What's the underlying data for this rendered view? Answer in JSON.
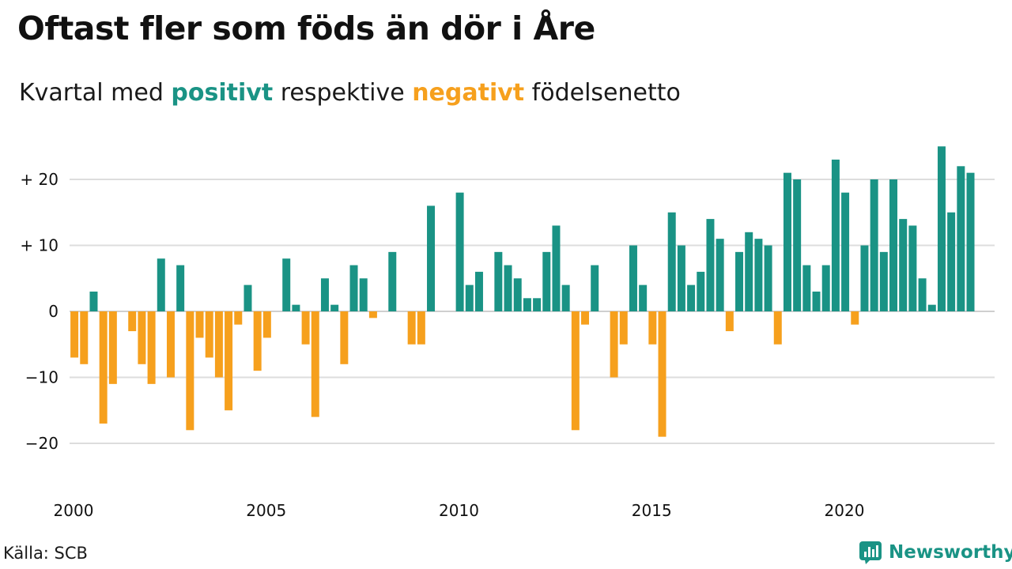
{
  "header": {
    "title": "Oftast fler som föds än dör i Åre",
    "subtitle_prefix": "Kvartal med ",
    "subtitle_positive": "positivt",
    "subtitle_middle": " respektive ",
    "subtitle_negative": "negativt",
    "subtitle_suffix": " födelsenetto"
  },
  "footer": {
    "source": "Källa: SCB",
    "brand": "Newsworthy",
    "brand_icon": "bar-chart-logo-icon"
  },
  "colors": {
    "positive": "#1a9385",
    "negative": "#f6a01d",
    "grid": "#dddddd",
    "text": "#111111"
  },
  "chart_data": {
    "type": "bar",
    "title": "Oftast fler som föds än dör i Åre",
    "subtitle": "Kvartal med positivt respektive negativt födelsenetto",
    "xlabel": "",
    "ylabel": "",
    "ylim": [
      -25,
      27
    ],
    "y_ticks": [
      -20,
      -10,
      0,
      10,
      20
    ],
    "y_tick_labels": [
      "−20",
      "−10",
      "0",
      "+ 10",
      "+ 20"
    ],
    "x_tick_years": [
      2000,
      2005,
      2010,
      2015,
      2020
    ],
    "x_tick_labels": [
      "2000",
      "2005",
      "2010",
      "2015",
      "2020"
    ],
    "start_year": 2000,
    "periods_per_year": 4,
    "grid": true,
    "legend": "none",
    "categories": [
      "2000K1",
      "2000K2",
      "2000K3",
      "2000K4",
      "2001K1",
      "2001K2",
      "2001K3",
      "2001K4",
      "2002K1",
      "2002K2",
      "2002K3",
      "2002K4",
      "2003K1",
      "2003K2",
      "2003K3",
      "2003K4",
      "2004K1",
      "2004K2",
      "2004K3",
      "2004K4",
      "2005K1",
      "2005K2",
      "2005K3",
      "2005K4",
      "2006K1",
      "2006K2",
      "2006K3",
      "2006K4",
      "2007K1",
      "2007K2",
      "2007K3",
      "2007K4",
      "2008K1",
      "2008K2",
      "2008K3",
      "2008K4",
      "2009K1",
      "2009K2",
      "2009K3",
      "2009K4",
      "2010K1",
      "2010K2",
      "2010K3",
      "2010K4",
      "2011K1",
      "2011K2",
      "2011K3",
      "2011K4",
      "2012K1",
      "2012K2",
      "2012K3",
      "2012K4",
      "2013K1",
      "2013K2",
      "2013K3",
      "2013K4",
      "2014K1",
      "2014K2",
      "2014K3",
      "2014K4",
      "2015K1",
      "2015K2",
      "2015K3",
      "2015K4",
      "2016K1",
      "2016K2",
      "2016K3",
      "2016K4",
      "2017K1",
      "2017K2",
      "2017K3",
      "2017K4",
      "2018K1",
      "2018K2",
      "2018K3",
      "2018K4",
      "2019K1",
      "2019K2",
      "2019K3",
      "2019K4",
      "2020K1",
      "2020K2",
      "2020K3",
      "2020K4",
      "2021K1",
      "2021K2",
      "2021K3",
      "2021K4",
      "2022K1",
      "2022K2",
      "2022K3",
      "2022K4",
      "2023K1",
      "2023K2",
      "2023K3",
      "2023K4"
    ],
    "values": [
      -7,
      -8,
      3,
      -17,
      -11,
      0,
      -3,
      -8,
      -11,
      8,
      -10,
      7,
      -18,
      -4,
      -7,
      -10,
      -15,
      -2,
      4,
      -9,
      -4,
      0,
      8,
      1,
      -5,
      -16,
      5,
      1,
      -8,
      7,
      5,
      -1,
      0,
      9,
      0,
      -5,
      -5,
      16,
      0,
      0,
      18,
      4,
      6,
      0,
      9,
      7,
      5,
      2,
      2,
      9,
      13,
      4,
      -18,
      -2,
      7,
      0,
      -10,
      -5,
      10,
      4,
      -5,
      -19,
      15,
      10,
      4,
      6,
      14,
      11,
      -3,
      9,
      12,
      11,
      10,
      -5,
      21,
      20,
      7,
      3,
      7,
      23,
      18,
      -2,
      10,
      20,
      9,
      20,
      14,
      13,
      5,
      1,
      25,
      15,
      22,
      21,
      0,
      0
    ]
  }
}
